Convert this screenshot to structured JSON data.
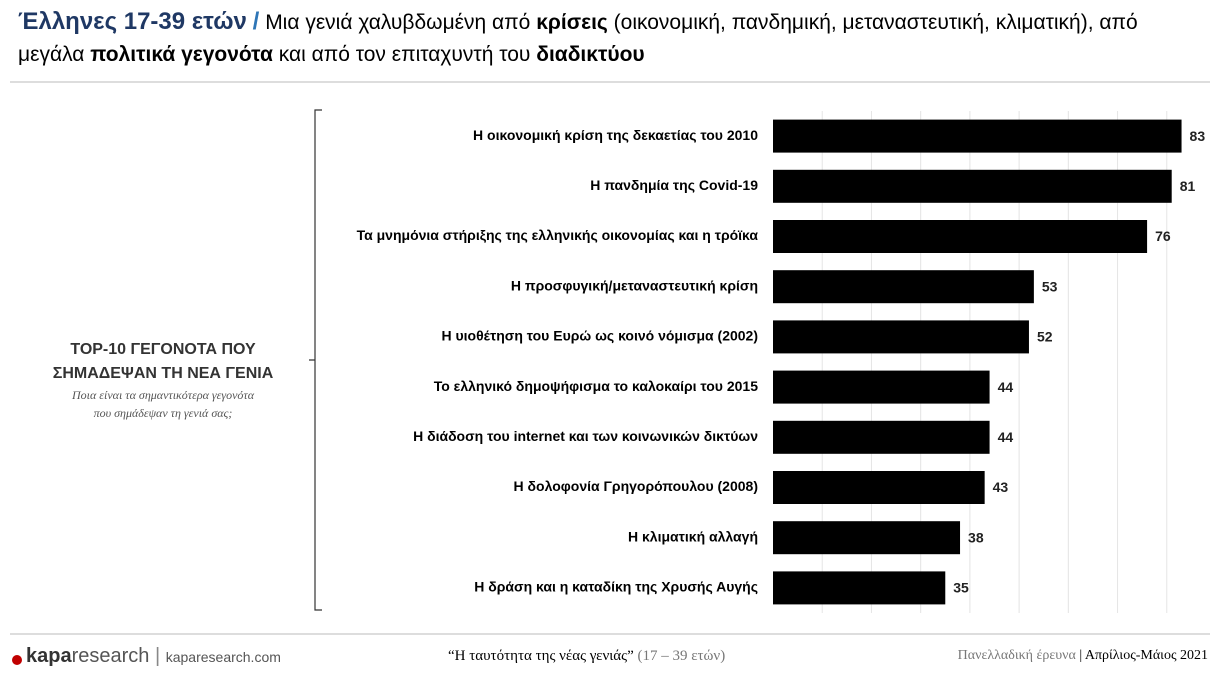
{
  "title": {
    "lead": "Έλληνες 17-39 ετών",
    "separator": "/",
    "parts": [
      "Μια γενιά χαλυβδωμένη από",
      "κρίσεις",
      "(οικονομική, πανδημική, μεταναστευτική, κλιματική), από μεγάλα",
      "πολιτικά γεγονότα",
      "και από τον επιταχυντή του",
      "διαδικτύου"
    ]
  },
  "side_label": {
    "heading": [
      "TOP-10 ΓΕΓΟΝΟΤΑ ΠΟΥ",
      "ΣΗΜΑΔΕΨΑΝ ΤΗ ΝΕΑ ΓΕΝΙΑ"
    ],
    "question": [
      "Ποια είναι τα σημαντικότερα γεγονότα",
      "που σημάδεψαν τη γενιά σας;"
    ]
  },
  "chart_data": {
    "type": "hbar",
    "categories": [
      "Η οικονομική κρίση της δεκαετίας του 2010",
      "Η πανδημία της Covid-19",
      "Τα μνημόνια στήριξης της ελληνικής οικονομίας και η τρόϊκα",
      "Η προσφυγική/μεταναστευτική κρίση",
      "Η υιοθέτηση του Ευρώ ως κοινό νόμισμα (2002)",
      "Το ελληνικό δημοψήφισμα το καλοκαίρι του 2015",
      "Η διάδοση του internet και των κοινωνικών δικτύων",
      "Η δολοφονία Γρηγορόπουλου (2008)",
      "Η κλιματική αλλαγή",
      "Η δράση και η καταδίκη της Χρυσής Αυγής"
    ],
    "values": [
      83,
      81,
      76,
      53,
      52,
      44,
      44,
      43,
      38,
      35
    ],
    "color": "#000000",
    "xlim": [
      0,
      90
    ],
    "xticks": [
      10,
      20,
      30,
      40,
      50,
      60,
      70,
      80
    ],
    "grid": true
  },
  "footer": {
    "brand_bold": "kapa",
    "brand_light": "research",
    "site": "kaparesearch.com",
    "study": "“Η ταυτότητα της νέας γενιάς”",
    "study_age": "(17 – 39 ετών)",
    "survey": "Πανελλαδική έρευνα",
    "sep": "|",
    "period": "Απρίλιος-Μάιος 2021"
  }
}
